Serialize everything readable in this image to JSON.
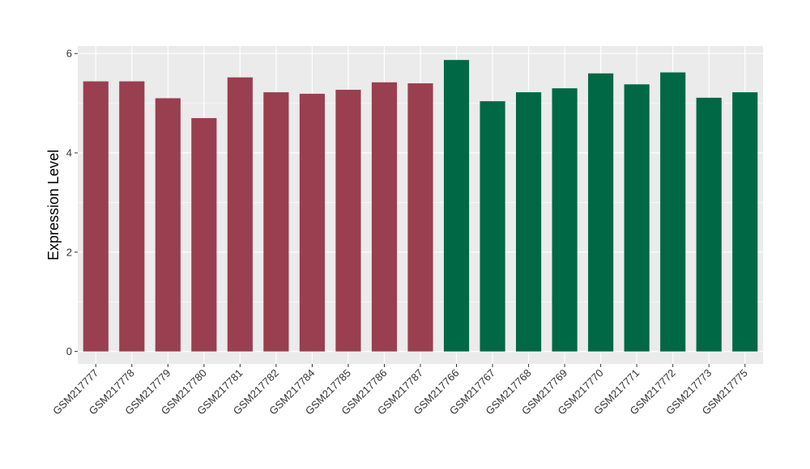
{
  "chart_data": {
    "type": "bar",
    "title": "",
    "xlabel": "",
    "ylabel": "Expression Level",
    "ylim": [
      -0.25,
      6.15
    ],
    "yticks": [
      0,
      2,
      4,
      6
    ],
    "grid": true,
    "legend": "none",
    "categories": [
      "GSM217777",
      "GSM217778",
      "GSM217779",
      "GSM217780",
      "GSM217781",
      "GSM217782",
      "GSM217784",
      "GSM217785",
      "GSM217786",
      "GSM217787",
      "GSM217766",
      "GSM217767",
      "GSM217768",
      "GSM217769",
      "GSM217770",
      "GSM217771",
      "GSM217772",
      "GSM217773",
      "GSM217775"
    ],
    "values": [
      5.44,
      5.44,
      5.1,
      4.7,
      5.52,
      5.22,
      5.19,
      5.27,
      5.42,
      5.4,
      5.87,
      5.04,
      5.22,
      5.3,
      5.6,
      5.38,
      5.62,
      5.11,
      5.22
    ],
    "bar_colors": [
      "#9a3f4f",
      "#9a3f4f",
      "#9a3f4f",
      "#9a3f4f",
      "#9a3f4f",
      "#9a3f4f",
      "#9a3f4f",
      "#9a3f4f",
      "#9a3f4f",
      "#9a3f4f",
      "#006845",
      "#006845",
      "#006845",
      "#006845",
      "#006845",
      "#006845",
      "#006845",
      "#006845",
      "#006845"
    ],
    "panel_color": "#ebebeb",
    "grid_color": "#ffffff"
  }
}
